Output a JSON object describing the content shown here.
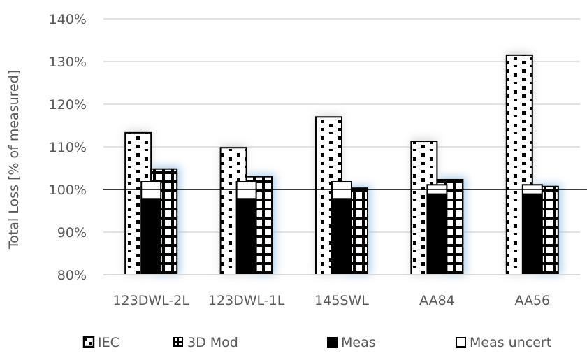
{
  "chart_data": {
    "type": "bar",
    "title": "",
    "xlabel": "",
    "ylabel": "Total Loss [% of measured]",
    "ylim": [
      80,
      140
    ],
    "yticks": [
      80,
      90,
      100,
      110,
      120,
      130,
      140
    ],
    "ytick_labels": [
      "80%",
      "90%",
      "100%",
      "110%",
      "120%",
      "130%",
      "140%"
    ],
    "reference_line": 100,
    "grid": true,
    "legend_position": "bottom",
    "categories": [
      "123DWL-2L",
      "123DWL-1L",
      "145SWL",
      "AA84",
      "AA56"
    ],
    "series": [
      {
        "name": "IEC",
        "pattern": "dots",
        "values": [
          113.3,
          109.8,
          117.0,
          111.3,
          131.5
        ]
      },
      {
        "name": "3D Mod",
        "pattern": "grid",
        "values": [
          104.8,
          103.0,
          100.3,
          102.3,
          100.7
        ]
      },
      {
        "name": "Meas",
        "pattern": "solid-black",
        "values": [
          97.9,
          97.9,
          97.9,
          99.0,
          99.0
        ]
      },
      {
        "name": "Meas uncert",
        "pattern": "white",
        "values": [
          101.8,
          101.8,
          101.8,
          101.1,
          101.1
        ]
      }
    ]
  },
  "legend": [
    {
      "label": "IEC",
      "icon": "dotted-square-icon"
    },
    {
      "label": "3D Mod",
      "icon": "grid-square-icon"
    },
    {
      "label": "Meas",
      "icon": "black-square-icon"
    },
    {
      "label": "Meas uncert",
      "icon": "white-square-icon"
    }
  ],
  "colors": {
    "text": "#595959",
    "gridline": "#d9d9d9",
    "bar_outline": "#000000",
    "glow": "#9dc3e6"
  }
}
